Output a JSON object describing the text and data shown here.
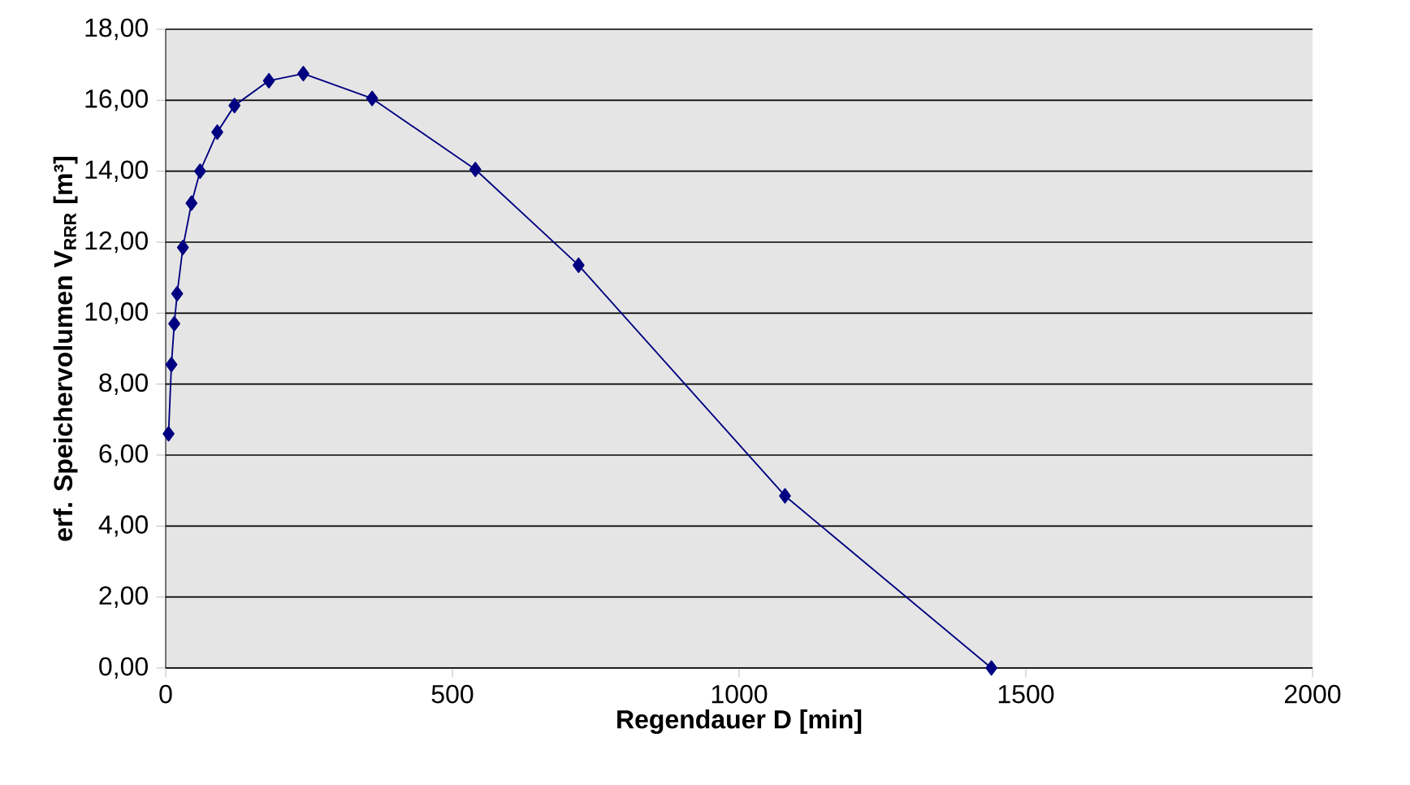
{
  "chart_data": {
    "type": "line",
    "xlabel": "Regendauer D [min]",
    "ylabel": "erf. Speichervolumen V$_{RRR}$ [m³]",
    "x": [
      5,
      10,
      15,
      20,
      30,
      45,
      60,
      90,
      120,
      180,
      240,
      360,
      540,
      720,
      1080,
      1440
    ],
    "series": [
      {
        "color": "#000080",
        "values": [
          6.6,
          8.55,
          9.7,
          10.55,
          11.85,
          13.1,
          14.0,
          15.1,
          15.85,
          16.55,
          16.75,
          16.05,
          14.05,
          11.35,
          4.85,
          0.0
        ]
      }
    ],
    "xlim": [
      0,
      2000
    ],
    "xticks": [
      0,
      500,
      1000,
      1500,
      2000
    ],
    "ylim": [
      0,
      18
    ],
    "yticks": [
      {
        "value": 0,
        "label": "0,00"
      },
      {
        "value": 2,
        "label": "2,00"
      },
      {
        "value": 4,
        "label": "4,00"
      },
      {
        "value": 6,
        "label": "6,00"
      },
      {
        "value": 8,
        "label": "8,00"
      },
      {
        "value": 10,
        "label": "10,00"
      },
      {
        "value": 12,
        "label": "12,00"
      },
      {
        "value": 14,
        "label": "14,00"
      },
      {
        "value": 16,
        "label": "16,00"
      },
      {
        "value": 18,
        "label": "18,00"
      }
    ],
    "grid": "y",
    "marker": "diamond",
    "line_style": "solid"
  }
}
